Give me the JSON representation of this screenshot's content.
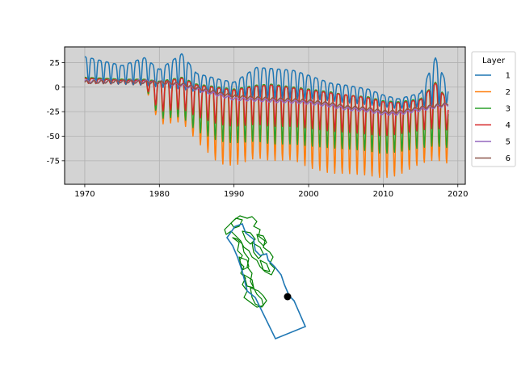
{
  "chart_data": [
    {
      "type": "line",
      "title": "",
      "xlabel": "",
      "ylabel": "",
      "xlim": [
        1967.3,
        2021.0
      ],
      "ylim": [
        -99,
        41
      ],
      "grid": true,
      "background_color": "#d3d3d3",
      "xticks": [
        1970,
        1980,
        1990,
        2000,
        2010,
        2020
      ],
      "yticks": [
        25,
        0,
        -25,
        -50,
        -75
      ],
      "legend": {
        "title": "Layer",
        "placement": "outside-right",
        "entries": [
          "1",
          "2",
          "3",
          "4",
          "5",
          "6"
        ]
      },
      "series": [
        {
          "name": "1",
          "color": "#1f77b4",
          "x": [
            1970,
            1975,
            1978,
            1980,
            1983,
            1985,
            1988,
            1990,
            1993,
            1995,
            1998,
            2000,
            2003,
            2005,
            2008,
            2010,
            2012,
            2015,
            2017,
            2018.7
          ],
          "high": [
            31,
            22,
            30,
            18,
            34,
            14,
            8,
            5,
            20,
            19,
            17,
            12,
            4,
            2,
            -2,
            -8,
            -12,
            -6,
            30,
            0
          ],
          "low": [
            5,
            3,
            2,
            0,
            -2,
            -5,
            -8,
            -10,
            -10,
            -11,
            -12,
            -12,
            -14,
            -16,
            -18,
            -20,
            -22,
            -20,
            -18,
            -16
          ]
        },
        {
          "name": "2",
          "color": "#ff7f0e",
          "x": [
            1970,
            1975,
            1978,
            1980,
            1983,
            1985,
            1988,
            1990,
            1993,
            1995,
            1998,
            2000,
            2003,
            2005,
            2008,
            2010,
            2012,
            2015,
            2017,
            2018.7
          ],
          "high": [
            10,
            8,
            8,
            5,
            10,
            3,
            0,
            -3,
            2,
            3,
            0,
            -2,
            -5,
            -8,
            -10,
            -14,
            -15,
            -12,
            5,
            -15
          ],
          "low": [
            4,
            3,
            2,
            -38,
            -35,
            -55,
            -78,
            -80,
            -72,
            -75,
            -74,
            -82,
            -88,
            -88,
            -90,
            -93,
            -90,
            -78,
            -74,
            -78
          ]
        },
        {
          "name": "3",
          "color": "#2ca02c",
          "x": [
            1970,
            1975,
            1978,
            1980,
            1983,
            1985,
            1988,
            1990,
            1993,
            1995,
            1998,
            2000,
            2003,
            2005,
            2008,
            2010,
            2012,
            2015,
            2017,
            2018.7
          ],
          "high": [
            10,
            8,
            8,
            6,
            10,
            3,
            0,
            -2,
            2,
            3,
            0,
            -2,
            -5,
            -8,
            -10,
            -14,
            -15,
            -12,
            5,
            -14
          ],
          "low": [
            4,
            3,
            2,
            -32,
            -30,
            -45,
            -55,
            -57,
            -55,
            -58,
            -58,
            -60,
            -62,
            -63,
            -65,
            -68,
            -66,
            -62,
            -60,
            -62
          ]
        },
        {
          "name": "4",
          "color": "#d62728",
          "x": [
            1970,
            1975,
            1978,
            1980,
            1983,
            1985,
            1988,
            1990,
            1993,
            1995,
            1998,
            2000,
            2003,
            2005,
            2008,
            2010,
            2012,
            2015,
            2017,
            2018.7
          ],
          "high": [
            9,
            7,
            7,
            5,
            9,
            2,
            -1,
            -3,
            1,
            2,
            -1,
            -3,
            -6,
            -8,
            -11,
            -15,
            -16,
            -13,
            4,
            -15
          ],
          "low": [
            4,
            3,
            2,
            -25,
            -22,
            -30,
            -38,
            -40,
            -38,
            -40,
            -40,
            -42,
            -45,
            -46,
            -48,
            -50,
            -48,
            -44,
            -42,
            -44
          ]
        },
        {
          "name": "5",
          "color": "#9467bd",
          "x": [
            1970,
            1975,
            1978,
            1980,
            1983,
            1985,
            1988,
            1990,
            1993,
            1995,
            1998,
            2000,
            2003,
            2005,
            2008,
            2010,
            2012,
            2015,
            2017,
            2018.7
          ],
          "values": [
            6,
            6,
            6,
            5,
            2,
            -2,
            -8,
            -12,
            -13,
            -14,
            -15,
            -16,
            -19,
            -22,
            -24,
            -27,
            -27,
            -23,
            -20,
            -18
          ]
        },
        {
          "name": "6",
          "color": "#8c564b",
          "x": [
            1970,
            1975,
            1978,
            1980,
            1983,
            1985,
            1988,
            1990,
            1993,
            1995,
            1998,
            2000,
            2003,
            2005,
            2008,
            2010,
            2012,
            2015,
            2017,
            2018.7
          ],
          "values": [
            5,
            6,
            5,
            5,
            3,
            -1,
            -6,
            -9,
            -11,
            -12,
            -13,
            -14,
            -17,
            -20,
            -22,
            -25,
            -25,
            -21,
            -19,
            -17
          ]
        }
      ]
    },
    {
      "type": "map",
      "title": "",
      "outline_color": "#1f77b4",
      "subregion_color": "#008000",
      "marker_color": "#000000"
    }
  ]
}
